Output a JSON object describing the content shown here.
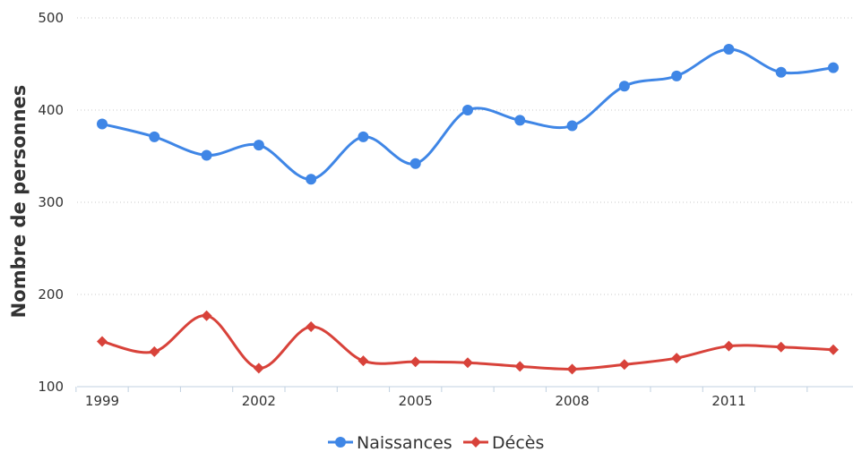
{
  "chart_data": {
    "type": "line",
    "ylabel": "Nombre de personnes",
    "xlabel": "",
    "ylim": [
      100,
      500
    ],
    "yticks": [
      "100",
      "200",
      "300",
      "400",
      "500"
    ],
    "x": [
      1999,
      2000,
      2001,
      2002,
      2003,
      2004,
      2005,
      2006,
      2007,
      2008,
      2009,
      2010,
      2011,
      2012,
      2013
    ],
    "xtick_labels": [
      "1999",
      "2002",
      "2005",
      "2008",
      "2011"
    ],
    "grid": true,
    "legend_position": "bottom",
    "series": [
      {
        "name": "Naissances",
        "color": "#3f86e6",
        "marker": "circle",
        "values": [
          385,
          371,
          351,
          362,
          325,
          371,
          342,
          400,
          389,
          383,
          426,
          437,
          466,
          441,
          446
        ]
      },
      {
        "name": "Décès",
        "color": "#d8423a",
        "marker": "diamond",
        "values": [
          149,
          138,
          177,
          120,
          165,
          128,
          127,
          126,
          122,
          119,
          124,
          131,
          144,
          143,
          140
        ]
      }
    ]
  }
}
